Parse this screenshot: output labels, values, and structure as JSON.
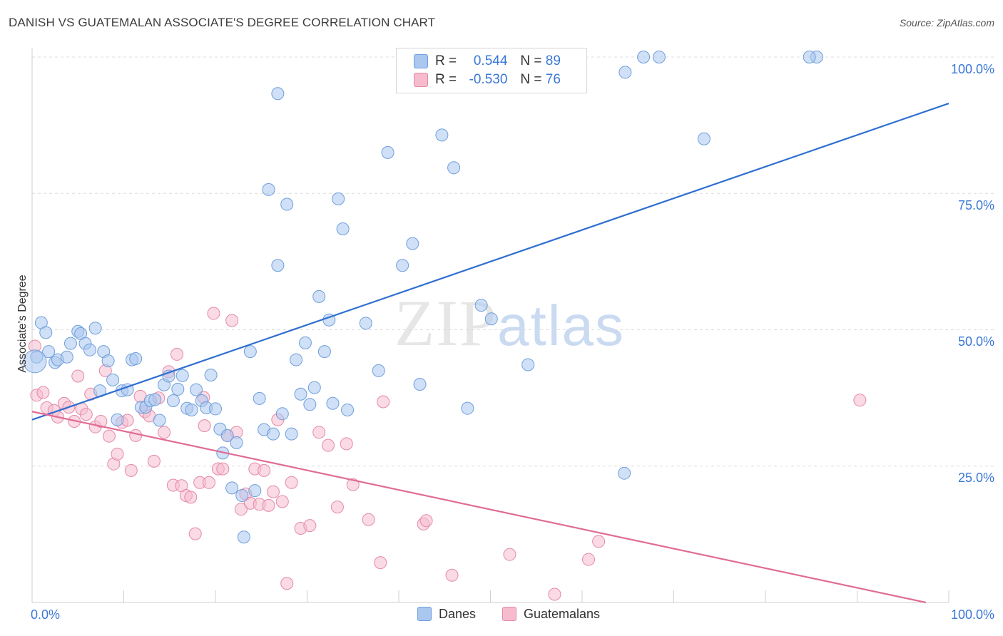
{
  "title": "DANISH VS GUATEMALAN ASSOCIATE'S DEGREE CORRELATION CHART",
  "source": "Source: ZipAtlas.com",
  "watermark": {
    "zip": "ZIP",
    "atlas": "atlas"
  },
  "colors": {
    "danes_fill": "#a9c7ef",
    "danes_stroke": "#6f9fdc",
    "danes_line": "#2f6fd0",
    "guat_fill": "#f6bccd",
    "guat_stroke": "#e48aa8",
    "guat_line": "#e06c95",
    "tick_text": "#3a78d8",
    "grid": "#dcdcdc"
  },
  "legend": {
    "danes": {
      "r_label": "R =",
      "r_value": "0.544",
      "n_label": "N =",
      "n_value": "89"
    },
    "guat": {
      "r_label": "R =",
      "r_value": "-0.530",
      "n_label": "N =",
      "n_value": "76"
    }
  },
  "bottom_legend": {
    "danes": "Danes",
    "guatemalans": "Guatemalans"
  },
  "chart_data": {
    "type": "scatter",
    "title": "DANISH VS GUATEMALAN ASSOCIATE'S DEGREE CORRELATION CHART",
    "xlabel": "",
    "ylabel": "Associate's Degree",
    "xlim": [
      0,
      100
    ],
    "ylim": [
      0,
      100
    ],
    "x_tick_labels": [
      "0.0%",
      "100.0%"
    ],
    "y_tick_labels": [
      "100.0%",
      "75.0%",
      "50.0%",
      "25.0%"
    ],
    "y_ticks": [
      100,
      75,
      50,
      25
    ],
    "grid": true,
    "legend_position": "top-center",
    "series": [
      {
        "name": "Danes",
        "trend": {
          "x": [
            0,
            100
          ],
          "y": [
            33.5,
            91.5
          ]
        },
        "points": [
          [
            0.5,
            45
          ],
          [
            1.0,
            51.3
          ],
          [
            1.5,
            49.5
          ],
          [
            1.8,
            46
          ],
          [
            2.5,
            44
          ],
          [
            2.8,
            44.5
          ],
          [
            3.8,
            45
          ],
          [
            4.2,
            47.5
          ],
          [
            5.0,
            49.7
          ],
          [
            5.3,
            49.3
          ],
          [
            5.8,
            47.5
          ],
          [
            6.3,
            46.3
          ],
          [
            6.9,
            50.3
          ],
          [
            7.4,
            38.8
          ],
          [
            7.8,
            46
          ],
          [
            8.3,
            44.3
          ],
          [
            8.8,
            40.8
          ],
          [
            9.3,
            33.5
          ],
          [
            9.8,
            38.8
          ],
          [
            10.4,
            39
          ],
          [
            10.9,
            44.5
          ],
          [
            11.3,
            44.7
          ],
          [
            11.9,
            35.8
          ],
          [
            12.4,
            35.8
          ],
          [
            12.9,
            37
          ],
          [
            13.4,
            37.2
          ],
          [
            13.9,
            33.4
          ],
          [
            14.4,
            39.9
          ],
          [
            14.9,
            41.5
          ],
          [
            15.4,
            37
          ],
          [
            15.9,
            39.1
          ],
          [
            16.4,
            41.6
          ],
          [
            16.9,
            35.6
          ],
          [
            17.4,
            35.3
          ],
          [
            17.9,
            39
          ],
          [
            18.5,
            37
          ],
          [
            19.0,
            35.7
          ],
          [
            19.5,
            41.7
          ],
          [
            20.0,
            35.5
          ],
          [
            20.5,
            31.8
          ],
          [
            20.8,
            27.4
          ],
          [
            21.3,
            30.6
          ],
          [
            21.8,
            21
          ],
          [
            22.3,
            29.3
          ],
          [
            22.9,
            19.6
          ],
          [
            23.1,
            12
          ],
          [
            23.8,
            46
          ],
          [
            24.3,
            20.5
          ],
          [
            24.8,
            37.4
          ],
          [
            25.3,
            31.7
          ],
          [
            25.8,
            75.7
          ],
          [
            26.3,
            30.9
          ],
          [
            26.8,
            61.8
          ],
          [
            27.3,
            34.6
          ],
          [
            27.8,
            73
          ],
          [
            28.3,
            30.9
          ],
          [
            28.8,
            44.5
          ],
          [
            29.3,
            38.2
          ],
          [
            29.8,
            47.6
          ],
          [
            30.3,
            36.3
          ],
          [
            30.8,
            39.4
          ],
          [
            31.3,
            56.1
          ],
          [
            31.9,
            46
          ],
          [
            32.4,
            51.8
          ],
          [
            32.8,
            36.5
          ],
          [
            33.4,
            74
          ],
          [
            33.9,
            68.5
          ],
          [
            34.4,
            35.3
          ],
          [
            26.8,
            93.3
          ],
          [
            36.4,
            51.2
          ],
          [
            37.8,
            42.5
          ],
          [
            38.8,
            82.5
          ],
          [
            40.4,
            61.8
          ],
          [
            41.5,
            65.8
          ],
          [
            42.3,
            40
          ],
          [
            44.7,
            85.7
          ],
          [
            46.0,
            79.7
          ],
          [
            47.5,
            35.6
          ],
          [
            49.0,
            54.5
          ],
          [
            50.1,
            52
          ],
          [
            54.1,
            43.6
          ],
          [
            58.9,
            100
          ],
          [
            64.6,
            23.7
          ],
          [
            64.7,
            97.2
          ],
          [
            66.7,
            100
          ],
          [
            68.4,
            100
          ],
          [
            73.3,
            85
          ],
          [
            85.6,
            100
          ],
          [
            84.8,
            100
          ]
        ]
      },
      {
        "name": "Guatemalans",
        "trend": {
          "x": [
            0,
            97.5
          ],
          "y": [
            35,
            0
          ]
        },
        "points": [
          [
            0.3,
            47
          ],
          [
            0.5,
            38
          ],
          [
            1.2,
            38.5
          ],
          [
            1.6,
            35.7
          ],
          [
            2.4,
            35.2
          ],
          [
            2.8,
            34
          ],
          [
            3.5,
            36.5
          ],
          [
            4.0,
            35.8
          ],
          [
            4.6,
            33.2
          ],
          [
            5.0,
            41.5
          ],
          [
            5.4,
            35.5
          ],
          [
            5.9,
            34.5
          ],
          [
            6.4,
            38.2
          ],
          [
            6.9,
            32.2
          ],
          [
            7.5,
            33.2
          ],
          [
            8.0,
            42.5
          ],
          [
            8.4,
            30.5
          ],
          [
            8.9,
            25.4
          ],
          [
            9.3,
            27.2
          ],
          [
            9.8,
            33
          ],
          [
            10.4,
            33.4
          ],
          [
            10.8,
            24.2
          ],
          [
            11.3,
            30.6
          ],
          [
            11.8,
            37.8
          ],
          [
            12.3,
            35
          ],
          [
            12.8,
            34.2
          ],
          [
            13.3,
            25.9
          ],
          [
            13.8,
            37.5
          ],
          [
            14.4,
            31.2
          ],
          [
            14.9,
            42.3
          ],
          [
            15.4,
            21.5
          ],
          [
            15.8,
            45.5
          ],
          [
            16.3,
            21.4
          ],
          [
            16.8,
            19.6
          ],
          [
            17.3,
            19.3
          ],
          [
            17.8,
            12.6
          ],
          [
            18.3,
            22
          ],
          [
            18.8,
            32.4
          ],
          [
            19.3,
            22
          ],
          [
            19.8,
            53
          ],
          [
            20.3,
            24.5
          ],
          [
            20.8,
            24.5
          ],
          [
            21.3,
            30.6
          ],
          [
            21.8,
            51.7
          ],
          [
            22.3,
            31.2
          ],
          [
            22.8,
            17.1
          ],
          [
            23.3,
            19.9
          ],
          [
            23.8,
            18.2
          ],
          [
            24.3,
            24.5
          ],
          [
            24.8,
            18
          ],
          [
            25.3,
            24.2
          ],
          [
            25.8,
            17.8
          ],
          [
            26.3,
            20.3
          ],
          [
            26.8,
            33.5
          ],
          [
            27.3,
            18.5
          ],
          [
            27.8,
            3.5
          ],
          [
            28.3,
            22
          ],
          [
            29.3,
            13.6
          ],
          [
            30.3,
            14.1
          ],
          [
            31.3,
            31.2
          ],
          [
            32.3,
            28.8
          ],
          [
            33.3,
            17.5
          ],
          [
            34.3,
            29.1
          ],
          [
            35.0,
            21.6
          ],
          [
            36.7,
            15.2
          ],
          [
            38.0,
            7.3
          ],
          [
            38.3,
            36.8
          ],
          [
            42.7,
            14.4
          ],
          [
            43.0,
            15
          ],
          [
            45.8,
            5
          ],
          [
            52.1,
            8.8
          ],
          [
            60.7,
            7.9
          ],
          [
            61.8,
            11.2
          ],
          [
            90.3,
            37.1
          ],
          [
            57.0,
            1.5
          ],
          [
            18.7,
            37.6
          ]
        ]
      }
    ]
  }
}
